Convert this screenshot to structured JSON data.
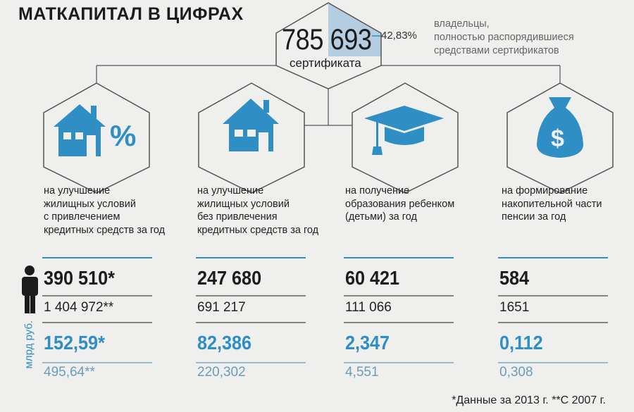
{
  "title": "МАТКАПИТАЛ В ЦИФРАХ",
  "total": {
    "count": "785 693",
    "unit": "сертификата",
    "percent": "42,83%",
    "percent_note": "владельцы, полностью распорядившиеся средствами сертификатов",
    "percent_note_lines": [
      "владельцы,",
      "полностью распорядившиеся",
      "средствами сертификатов"
    ],
    "percent_fill": 0.4283
  },
  "accent_color": "#2f8ec3",
  "categories": [
    {
      "icon": "house-percent-icon",
      "desc_lines": [
        "на улучшение",
        "жилищных условий",
        "с привлечением",
        "кредитных средств за год"
      ],
      "people_year": "390 510*",
      "people_total": "1 404 972**",
      "money_year": "152,59*",
      "money_total": "495,64**"
    },
    {
      "icon": "house-icon",
      "desc_lines": [
        "на улучшение",
        "жилищных условий",
        "без привлечения",
        "кредитных средств за год"
      ],
      "people_year": "247 680",
      "people_total": "691 217",
      "money_year": "82,386",
      "money_total": "220,302"
    },
    {
      "icon": "graduation-cap-icon",
      "desc_lines": [
        "на получение",
        "образования ребенком",
        "(детьми) за год"
      ],
      "people_year": "60 421",
      "people_total": "111 066",
      "money_year": "2,347",
      "money_total": "4,551"
    },
    {
      "icon": "money-bag-icon",
      "desc_lines": [
        "на формирование",
        "накопительной части",
        "пенсии за год"
      ],
      "people_year": "584",
      "people_total": "1651",
      "money_year": "0,112",
      "money_total": "0,308"
    }
  ],
  "money_axis_label": "млрд руб.",
  "footnote": "*Данные за 2013  г.   **С 2007  г."
}
